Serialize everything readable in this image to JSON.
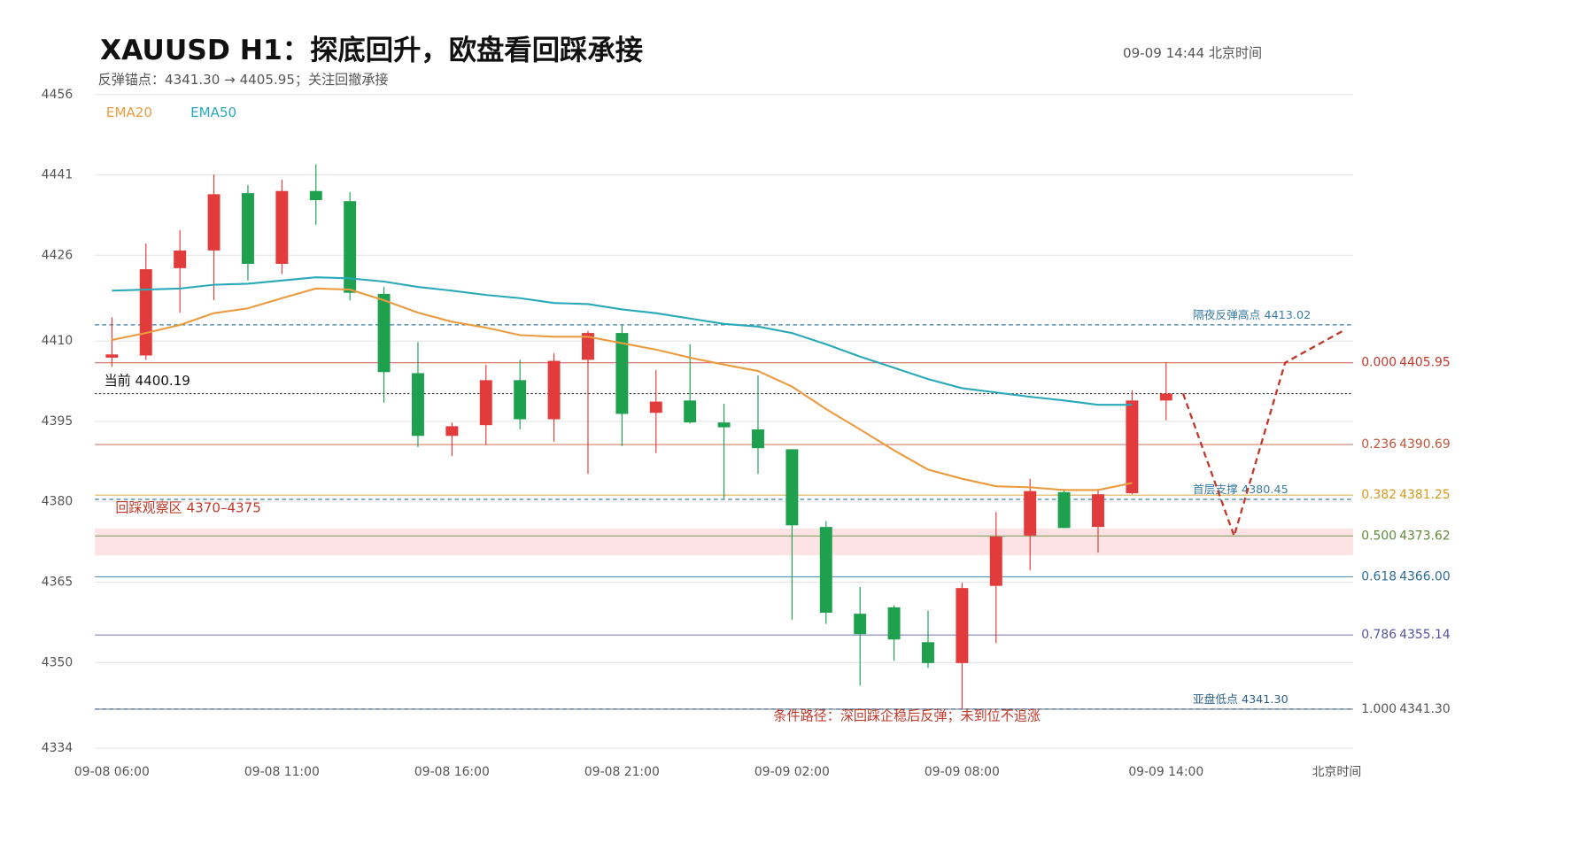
{
  "header": {
    "title": "XAUUSD  H1：探底回升，欧盘看回踩承接",
    "subtitle": "反弹锚点：4341.30 → 4405.95；关注回撤承接",
    "timestamp": "09-09  14:44 北京时间"
  },
  "chart_data": {
    "type": "candlestick",
    "categories": [
      "09-08 06:00",
      null,
      null,
      null,
      null,
      "09-08 11:00",
      null,
      null,
      null,
      null,
      "09-08 16:00",
      null,
      null,
      null,
      null,
      "09-08 21:00",
      null,
      null,
      null,
      null,
      "09-09 02:00",
      null,
      null,
      null,
      null,
      "09-09 08:00",
      null,
      null,
      null,
      null,
      null,
      "09-09 14:00"
    ],
    "x_label": "北京时间",
    "xlim": [
      -0.5,
      36.5
    ],
    "open": [
      4406.9,
      4407.3,
      4423.6,
      4426.9,
      4437.6,
      4424.4,
      4438.0,
      4436.1,
      4418.8,
      4404.0,
      4392.3,
      4394.3,
      4402.7,
      4395.4,
      4406.5,
      4411.5,
      4396.6,
      4398.9,
      4394.8,
      4393.5,
      4389.8,
      4375.3,
      4359.1,
      4360.3,
      4353.8,
      4349.9,
      4364.3,
      4373.7,
      4381.8,
      4375.3,
      4381.6,
      4398.9
    ],
    "high": [
      4414.4,
      4428.2,
      4430.7,
      4441.1,
      4439.1,
      4440.1,
      4443.0,
      4437.8,
      4420.1,
      4409.8,
      4394.8,
      4405.6,
      4406.5,
      4407.7,
      4411.9,
      4412.9,
      4404.6,
      4409.4,
      4398.3,
      4403.6,
      4389.8,
      4376.4,
      4364.1,
      4360.7,
      4359.7,
      4364.9,
      4378.1,
      4384.3,
      4382.4,
      4382.4,
      4400.8,
      4406.0
    ],
    "low": [
      4405.2,
      4406.5,
      4415.3,
      4417.6,
      4421.3,
      4422.5,
      4431.7,
      4417.6,
      4398.5,
      4390.2,
      4388.5,
      4390.6,
      4393.5,
      4391.2,
      4385.2,
      4390.4,
      4389.1,
      4394.6,
      4380.6,
      4385.2,
      4358.0,
      4357.2,
      4345.7,
      4350.3,
      4349.0,
      4341.3,
      4353.6,
      4367.2,
      4375.1,
      4370.5,
      4381.4,
      4395.2
    ],
    "close": [
      4407.5,
      4423.4,
      4426.9,
      4437.4,
      4424.4,
      4438.0,
      4436.3,
      4419.0,
      4404.2,
      4392.3,
      4394.1,
      4402.7,
      4395.4,
      4406.3,
      4411.5,
      4396.4,
      4398.7,
      4394.8,
      4393.9,
      4390.0,
      4375.6,
      4359.3,
      4355.3,
      4354.3,
      4349.9,
      4363.9,
      4373.5,
      4382.0,
      4375.1,
      4381.4,
      4398.9,
      4400.19
    ],
    "up_color": "#e23b3b",
    "down_color": "#1ea04f",
    "ylim": [
      4334,
      4456
    ],
    "yticks": [
      4456,
      4441,
      4426,
      4410,
      4395,
      4380,
      4365,
      4350,
      4334
    ],
    "grid": true,
    "series": [
      {
        "name": "EMA20",
        "color": "#eb9b3f",
        "values": [
          4410.2,
          4411.5,
          4413.0,
          4415.2,
          4416.1,
          4418.0,
          4419.8,
          4419.6,
          4417.6,
          4415.3,
          4413.6,
          4412.5,
          4411.1,
          4410.8,
          4410.8,
          4409.6,
          4408.4,
          4406.9,
          4405.6,
          4404.4,
          4401.5,
          4397.3,
          4393.5,
          4389.6,
          4386.0,
          4384.3,
          4382.9,
          4382.7,
          4382.2,
          4382.2,
          4383.5,
          null
        ]
      },
      {
        "name": "EMA50",
        "color": "#29a9b8",
        "values": [
          4419.4,
          4419.6,
          4419.8,
          4420.5,
          4420.7,
          4421.3,
          4421.9,
          4421.7,
          4421.1,
          4420.1,
          4419.4,
          4418.6,
          4418.0,
          4417.1,
          4416.9,
          4415.9,
          4415.2,
          4414.2,
          4413.2,
          4412.7,
          4411.5,
          4409.4,
          4407.1,
          4405.0,
          4402.9,
          4401.2,
          4400.4,
          4399.6,
          4398.9,
          4398.1,
          4398.1,
          null
        ]
      }
    ],
    "fib": {
      "ratios": [
        "0.000",
        "0.236",
        "0.382",
        "0.500",
        "0.618",
        "0.786",
        "1.000"
      ],
      "values": [
        4405.95,
        4390.69,
        4381.25,
        4373.62,
        4366.0,
        4355.14,
        4341.3
      ],
      "value_labels": [
        "4405.95",
        "4390.69",
        "4381.25",
        "4373.62",
        "4366.00",
        "4355.14",
        "4341.30"
      ],
      "colors": [
        "#c0392b",
        "#c0563b",
        "#d49a1e",
        "#5f8a3c",
        "#2d6e97",
        "#55559f",
        "#555555"
      ]
    },
    "levels": [
      {
        "label": "隔夜反弹高点 4413.02",
        "value": 4413.02,
        "color": "#3a7ca5"
      },
      {
        "label": "首层支撑 4380.45",
        "value": 4380.45,
        "color": "#3a7ca5"
      },
      {
        "label": "亚盘低点 4341.30",
        "value": 4341.3,
        "color": "#2e5f8a"
      }
    ],
    "current": {
      "label": "当前 4400.19",
      "value": 4400.19
    },
    "zone": {
      "label": "回踩观察区  4370–4375",
      "from": 4370,
      "to": 4375,
      "color": "#fde3e3"
    },
    "projection": {
      "x": [
        31.5,
        33,
        34.5,
        36.2
      ],
      "values": [
        4400.19,
        4373.62,
        4405.95,
        4411.9
      ],
      "color": "#c0392b"
    },
    "annotation": "条件路径：深回踩企稳后反弹；未到位不追涨"
  }
}
